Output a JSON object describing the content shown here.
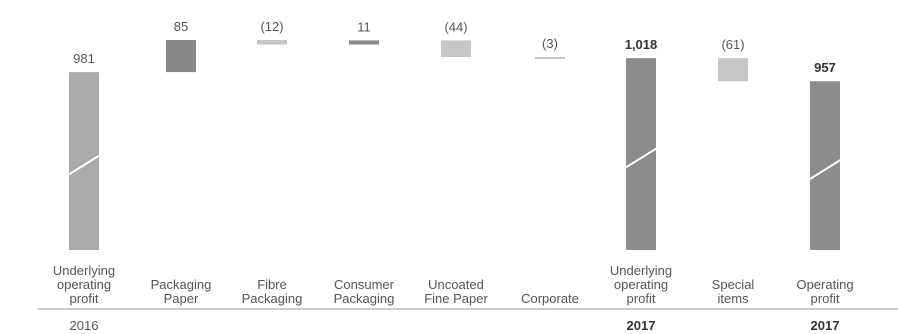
{
  "chart_data": {
    "type": "waterfall",
    "categories": [
      {
        "lines": [
          "Underlying",
          "operating",
          "profit"
        ],
        "year": "2016",
        "year_bold": false
      },
      {
        "lines": [
          "Packaging",
          "Paper"
        ],
        "year": ""
      },
      {
        "lines": [
          "Fibre",
          "Packaging"
        ],
        "year": ""
      },
      {
        "lines": [
          "Consumer",
          "Packaging"
        ],
        "year": ""
      },
      {
        "lines": [
          "Uncoated",
          "Fine Paper"
        ],
        "year": ""
      },
      {
        "lines": [
          "Corporate"
        ],
        "year": ""
      },
      {
        "lines": [
          "Underlying",
          "operating",
          "profit"
        ],
        "year": "2017",
        "year_bold": true
      },
      {
        "lines": [
          "Special",
          "items"
        ],
        "year": ""
      },
      {
        "lines": [
          "Operating",
          "profit"
        ],
        "year": "2017",
        "year_bold": true
      }
    ],
    "bars": [
      {
        "kind": "total",
        "start": 0,
        "end": 981,
        "label": "981",
        "bold": false,
        "color": "#aaaaaa",
        "break": true
      },
      {
        "kind": "delta",
        "start": 981,
        "end": 1066,
        "label": "85",
        "bold": false,
        "color": "#888888"
      },
      {
        "kind": "delta",
        "start": 1066,
        "end": 1054,
        "label": "(12)",
        "bold": false,
        "color": "#c6c6c6"
      },
      {
        "kind": "delta",
        "start": 1054,
        "end": 1065,
        "label": "11",
        "bold": false,
        "color": "#888888"
      },
      {
        "kind": "delta",
        "start": 1065,
        "end": 1021,
        "label": "(44)",
        "bold": false,
        "color": "#c6c6c6"
      },
      {
        "kind": "delta",
        "start": 1021,
        "end": 1018,
        "label": "(3)",
        "bold": false,
        "color": "#c6c6c6"
      },
      {
        "kind": "total",
        "start": 0,
        "end": 1018,
        "label": "1,018",
        "bold": true,
        "color": "#8c8c8c",
        "break": true
      },
      {
        "kind": "delta",
        "start": 1018,
        "end": 957,
        "label": "(61)",
        "bold": false,
        "color": "#c6c6c6"
      },
      {
        "kind": "total",
        "start": 0,
        "end": 957,
        "label": "957",
        "bold": true,
        "color": "#8c8c8c",
        "break": true
      }
    ]
  }
}
